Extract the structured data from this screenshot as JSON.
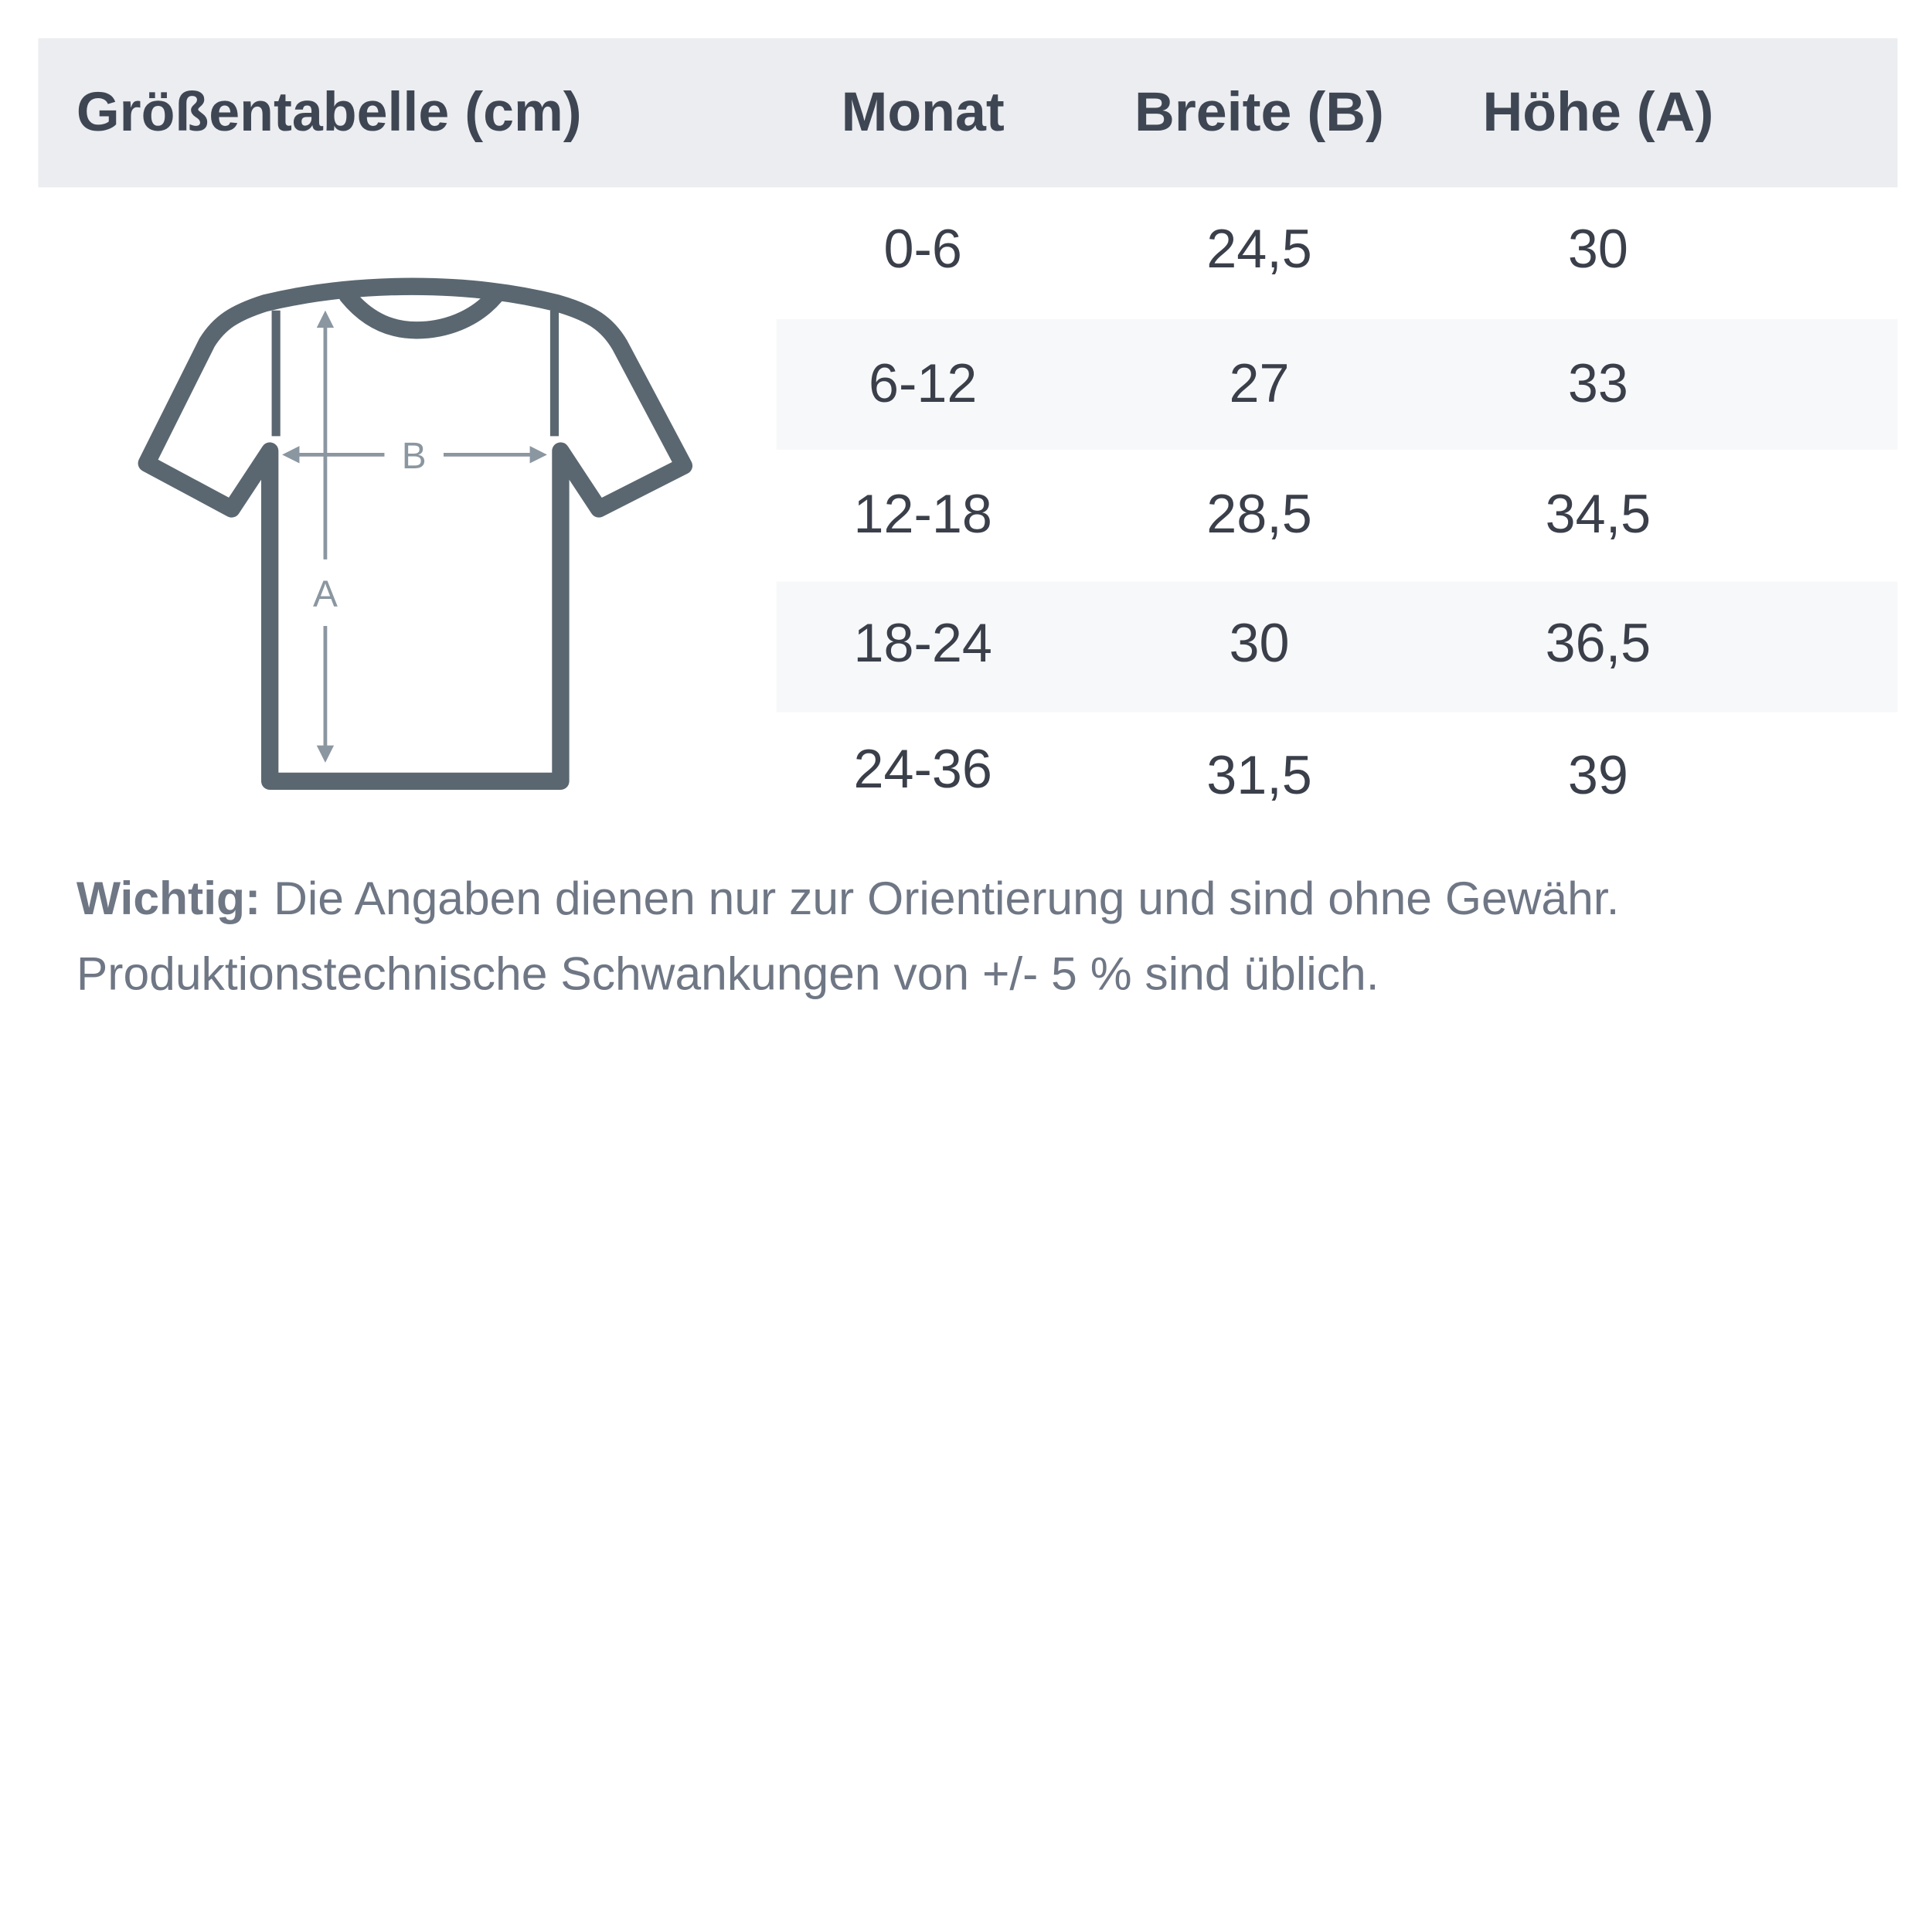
{
  "header": {
    "title": "Größentabelle (cm)",
    "columns": [
      "Monat",
      "Breite (B)",
      "Höhe (A)"
    ]
  },
  "rows": [
    [
      "0-6",
      "24,5",
      "30"
    ],
    [
      "6-12",
      "27",
      "33"
    ],
    [
      "12-18",
      "28,5",
      "34,5"
    ],
    [
      "18-24",
      "30",
      "36,5"
    ],
    [
      "24-36",
      "31,5",
      "39"
    ]
  ],
  "diagram": {
    "width_label": "B",
    "height_label": "A",
    "shirt_color": "#5a6770",
    "arrow_color": "#8a96a0"
  },
  "note": {
    "label": "Wichtig:",
    "text": " Die Angaben dienen nur zur Orientierung und sind ohne Gewähr. Produktionstechnische Schwankungen von +/- 5 % sind üblich."
  },
  "colors": {
    "header_bg": "#ebedf0",
    "stripe_bg": "#f7f8f9",
    "text": "#3f4653"
  }
}
